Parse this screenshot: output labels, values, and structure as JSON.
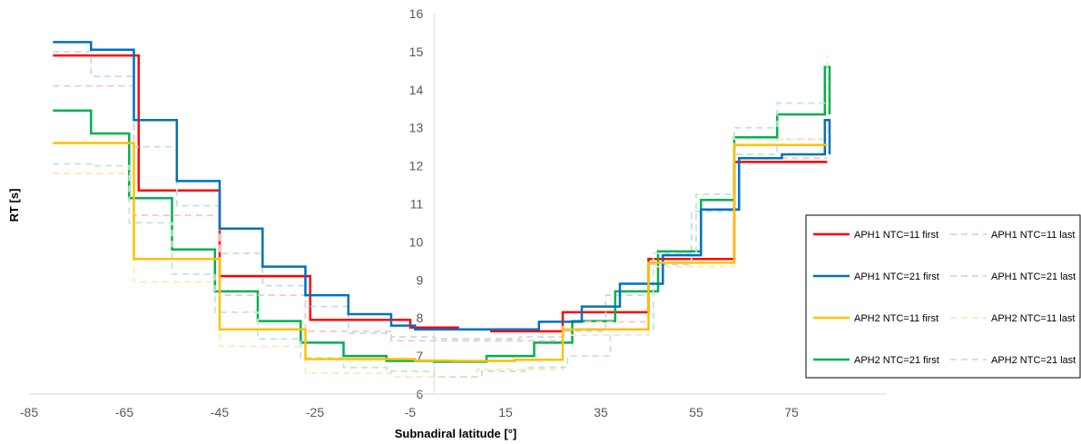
{
  "chart_data": {
    "type": "line",
    "step": true,
    "title": "",
    "xlabel": "Subnadiral latitude [°]",
    "ylabel": "RT [s]",
    "xlim": [
      -85,
      95
    ],
    "ylim": [
      6,
      16
    ],
    "x_ticks": [
      -85,
      -65,
      -45,
      -25,
      -5,
      15,
      35,
      55,
      75
    ],
    "y_ticks": [
      6,
      7,
      8,
      9,
      10,
      11,
      12,
      13,
      14,
      15,
      16
    ],
    "grid": false,
    "legend_position": "right",
    "series": [
      {
        "name": "APH1 NTC=11 first",
        "color": "#ff0000",
        "dash": false,
        "x": [
          -80,
          -62,
          -45,
          -26,
          -5,
          5,
          12,
          27,
          45,
          63,
          82.5
        ],
        "y": [
          14.9,
          11.35,
          9.1,
          7.95,
          7.75,
          7.7,
          7.65,
          8.15,
          9.55,
          12.1,
          12.1
        ]
      },
      {
        "name": "APH1 NTC=21 last",
        "color": "#c0dcf2",
        "dash": true,
        "x": [
          -80,
          -72,
          -63,
          -54,
          -45,
          -36,
          -27,
          -18,
          -9,
          0,
          9,
          18,
          27,
          36,
          45,
          54,
          63,
          72,
          82.5
        ],
        "y": [
          15.0,
          14.35,
          12.5,
          10.95,
          9.7,
          8.85,
          8.3,
          7.6,
          7.5,
          7.45,
          7.45,
          7.5,
          7.65,
          8.6,
          9.4,
          10.8,
          12.3,
          12.7,
          12.7
        ]
      },
      {
        "name": "APH2 NTC=21 first",
        "color": "#00b050",
        "dash": false,
        "x": [
          -80,
          -72,
          -64,
          -55,
          -46,
          -37,
          -28,
          -19,
          -10,
          0,
          11,
          21,
          29,
          38,
          47,
          56,
          63,
          72,
          82,
          83
        ],
        "y": [
          13.45,
          12.85,
          11.15,
          9.8,
          8.7,
          7.92,
          7.35,
          7.0,
          6.87,
          6.85,
          7.0,
          7.35,
          7.92,
          8.7,
          9.75,
          11.1,
          12.75,
          13.35,
          14.6,
          13.35
        ]
      },
      {
        "name": "APH1 NTC=11 last",
        "color": "#f7c6c8",
        "dash": true,
        "x": [
          -80,
          -63,
          -45,
          -27,
          -9,
          9,
          27,
          45,
          63,
          82.5
        ],
        "y": [
          14.1,
          10.7,
          8.6,
          7.65,
          7.4,
          7.4,
          7.9,
          9.45,
          12.2,
          12.2
        ]
      },
      {
        "name": "APH2 NTC=11 last",
        "color": "#fce8b8",
        "dash": true,
        "x": [
          -80,
          -63,
          -45,
          -27,
          -9,
          9,
          27,
          45,
          63,
          82.5
        ],
        "y": [
          11.8,
          8.95,
          7.25,
          6.55,
          6.45,
          6.65,
          7.55,
          9.35,
          12.7,
          14.9
        ]
      },
      {
        "name": "APH2 NTC=21 last",
        "color": "#bfe8d0",
        "dash": true,
        "x": [
          -80,
          -72,
          -64,
          -55,
          -46,
          -37,
          -28,
          -19,
          -10,
          0,
          10,
          19,
          28,
          37,
          46,
          55,
          63,
          72,
          82.5
        ],
        "y": [
          12.05,
          12.0,
          10.5,
          9.15,
          8.15,
          7.45,
          6.95,
          6.7,
          6.6,
          6.45,
          6.6,
          6.7,
          7.0,
          7.7,
          9.7,
          11.25,
          13.0,
          13.65,
          13.65
        ]
      },
      {
        "name": "APH1 NTC=21 first",
        "color": "#0070c0",
        "dash": false,
        "x": [
          -80,
          -72,
          -63,
          -54,
          -45,
          -36,
          -27,
          -18,
          -9,
          -4,
          4,
          13,
          22,
          31,
          39,
          48,
          56,
          64,
          73,
          82,
          83
        ],
        "y": [
          15.25,
          15.05,
          13.2,
          11.6,
          10.35,
          9.35,
          8.6,
          8.1,
          7.8,
          7.7,
          7.7,
          7.7,
          7.9,
          8.3,
          8.9,
          9.65,
          10.85,
          12.2,
          12.3,
          13.2,
          12.3
        ]
      },
      {
        "name": "APH2 NTC=11 first",
        "color": "#ffc000",
        "dash": false,
        "x": [
          -80,
          -64,
          -63,
          -45,
          -27,
          -18,
          -4,
          4,
          17,
          27,
          45,
          63,
          82.5
        ],
        "y": [
          12.6,
          12.6,
          9.55,
          7.7,
          6.92,
          6.92,
          6.88,
          6.87,
          6.9,
          7.7,
          9.45,
          12.55,
          12.55
        ]
      }
    ],
    "legend_order": [
      [
        "APH1 NTC=11 first",
        "APH1 NTC=11 last"
      ],
      [
        "APH1 NTC=21 first",
        "APH1 NTC=21 last"
      ],
      [
        "APH2 NTC=11 first",
        "APH2 NTC=11 last"
      ],
      [
        "APH2 NTC=21 first",
        "APH2 NTC=21 last"
      ]
    ]
  }
}
